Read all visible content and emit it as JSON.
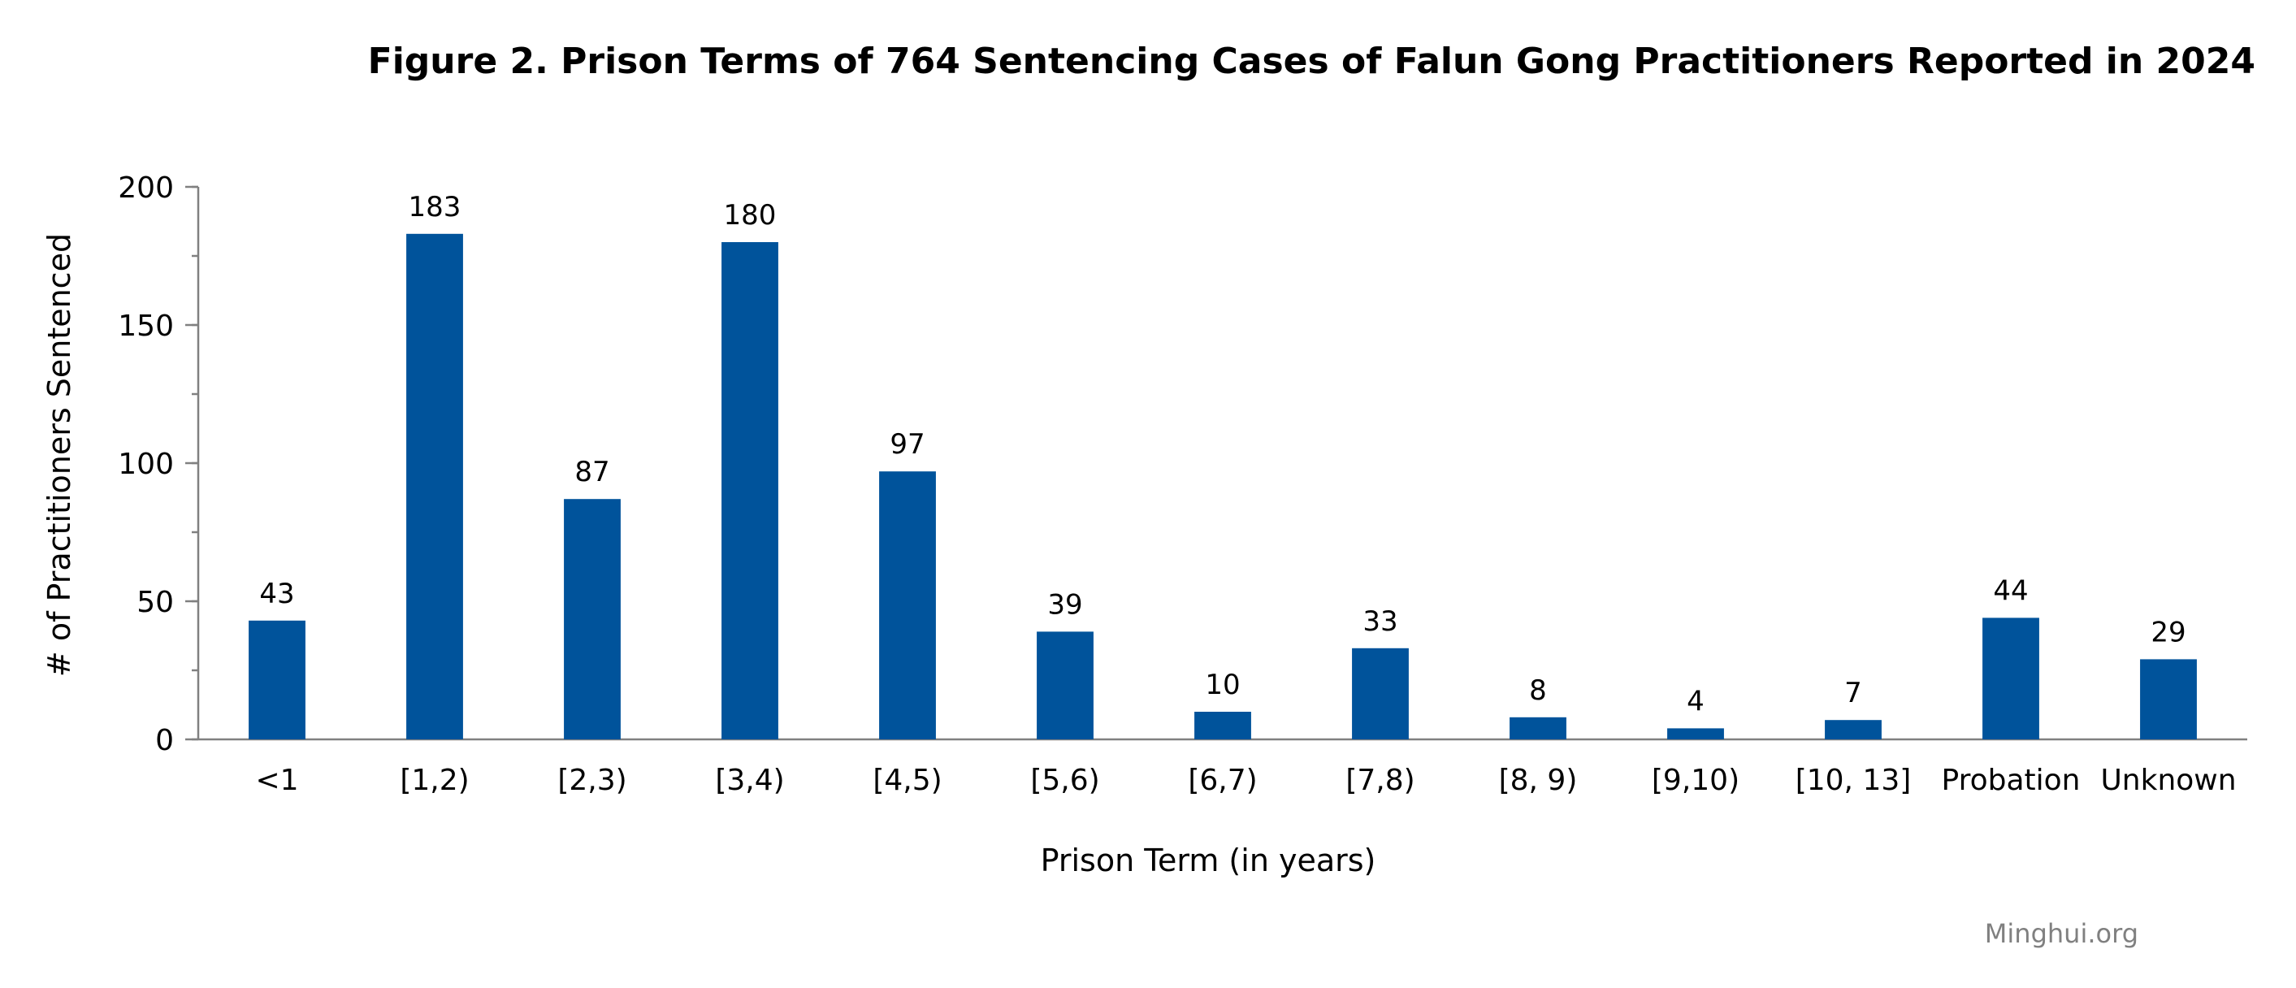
{
  "chart_data": {
    "type": "bar",
    "title": "Figure 2. Prison Terms of 764 Sentencing Cases of Falun Gong Practitioners Reported in 2024",
    "xlabel": "Prison Term (in years)",
    "ylabel": "# of Practitioners Sentenced",
    "categories": [
      "<1",
      "[1,2)",
      "[2,3)",
      "[3,4)",
      "[4,5)",
      "[5,6)",
      "[6,7)",
      "[7,8)",
      "[8, 9)",
      "[9,10)",
      "[10, 13]",
      "Probation",
      "Unknown"
    ],
    "values": [
      43,
      183,
      87,
      180,
      97,
      39,
      10,
      33,
      8,
      4,
      7,
      44,
      29
    ],
    "ylim": [
      0,
      200
    ],
    "yticks": [
      0,
      50,
      100,
      150,
      200
    ],
    "y_minor_step": 25,
    "grid": false,
    "legend": "none",
    "bar_color": "#00539b",
    "axis_color": "#808080"
  },
  "credit": "Minghui.org"
}
